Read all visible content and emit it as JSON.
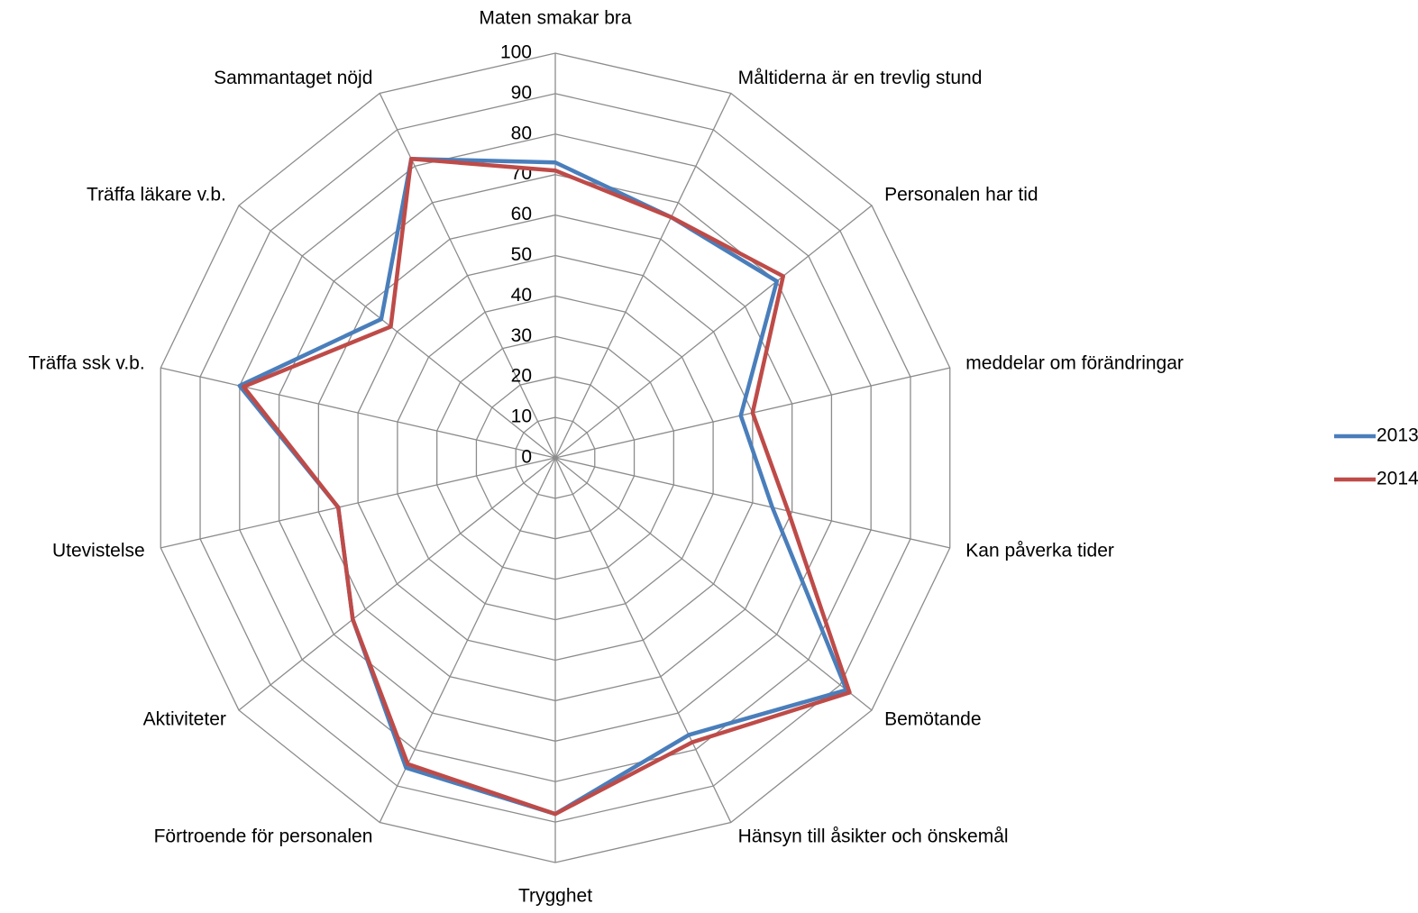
{
  "chart_data": {
    "type": "radar",
    "categories": [
      "Maten smakar bra",
      "Måltiderna är en trevlig stund",
      "Personalen har tid",
      "meddelar om förändringar",
      "Kan påverka tider",
      "Bemötande",
      "Hänsyn till åsikter och önskemål",
      "Trygghet",
      "Förtroende för personalen",
      "Aktiviteter",
      "Utevistelse",
      "Träffa ssk v.b.",
      "Träffa läkare v.b.",
      "Sammantaget nöjd"
    ],
    "series": [
      {
        "name": "2013",
        "color": "#4a7ebb",
        "values": [
          73,
          66,
          70,
          47,
          55,
          92,
          76,
          88,
          85,
          64,
          55,
          80,
          55,
          82
        ]
      },
      {
        "name": "2014",
        "color": "#be4b48",
        "values": [
          71,
          66,
          72,
          50,
          59,
          93,
          78,
          88,
          84,
          64,
          55,
          79,
          52,
          82
        ]
      }
    ],
    "ylim": [
      0,
      100
    ],
    "yticks": [
      0,
      10,
      20,
      30,
      40,
      50,
      60,
      70,
      80,
      90,
      100
    ],
    "grid": true,
    "legend": "right"
  }
}
